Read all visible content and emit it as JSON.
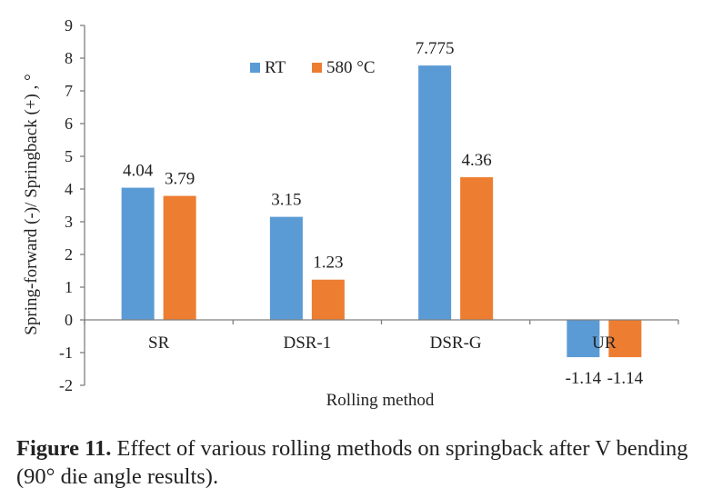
{
  "chart_data": {
    "type": "bar",
    "categories": [
      "SR",
      "DSR-1",
      "DSR-G",
      "UR"
    ],
    "series": [
      {
        "name": "RT",
        "color": "#5B9BD5",
        "values": [
          4.04,
          3.15,
          7.775,
          -1.14
        ],
        "labels": [
          "4.04",
          "3.15",
          "7.775",
          "-1.14"
        ]
      },
      {
        "name": "580 °C",
        "color": "#ED7D31",
        "values": [
          3.79,
          1.23,
          4.36,
          -1.14
        ],
        "labels": [
          "3.79",
          "1.23",
          "4.36",
          "-1.14"
        ]
      }
    ],
    "xlabel": "Rolling method",
    "ylabel": "Spring-forward (-)/ Springback (+) , °",
    "ylim": [
      -2,
      9
    ],
    "yticks": [
      "-2",
      "-1",
      "0",
      "1",
      "2",
      "3",
      "4",
      "5",
      "6",
      "7",
      "8",
      "9"
    ],
    "grid": false,
    "legend_position": "top-left inside plot"
  },
  "caption": {
    "label": "Figure 11.",
    "text": " Effect of various rolling methods on springback after V bending (90° die angle results)."
  }
}
